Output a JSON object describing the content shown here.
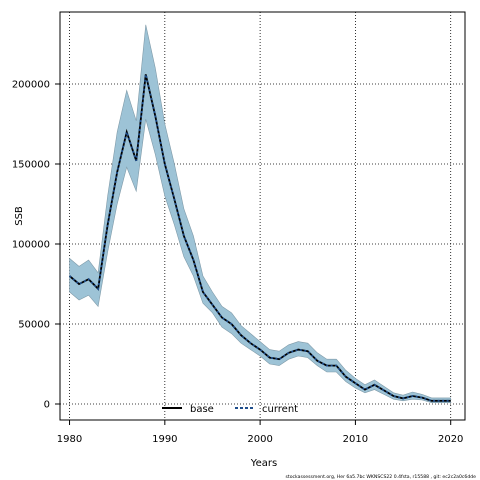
{
  "chart_data": {
    "type": "line",
    "xlabel": "Years",
    "ylabel": "SSB",
    "xlim": [
      1979,
      2021.5
    ],
    "ylim": [
      -10000,
      245000
    ],
    "xticks": [
      1980,
      1990,
      2000,
      2010,
      2020
    ],
    "yticks": [
      0,
      50000,
      100000,
      150000,
      200000
    ],
    "grid": true,
    "legend_position": "bottom-center",
    "band_color": "#9dc3d6",
    "band_edge_color": "#7f9aa8",
    "x": [
      1980,
      1981,
      1982,
      1983,
      1984,
      1985,
      1986,
      1987,
      1988,
      1989,
      1990,
      1991,
      1992,
      1993,
      1994,
      1995,
      1996,
      1997,
      1998,
      1999,
      2000,
      2001,
      2002,
      2003,
      2004,
      2005,
      2006,
      2007,
      2008,
      2009,
      2010,
      2011,
      2012,
      2013,
      2014,
      2015,
      2016,
      2017,
      2018,
      2019,
      2020
    ],
    "band_upper": [
      91000,
      86000,
      90000,
      82000,
      130000,
      170000,
      196000,
      177000,
      237000,
      210000,
      175000,
      150000,
      122000,
      105000,
      80000,
      70000,
      61000,
      57000,
      49000,
      44000,
      39000,
      34000,
      33000,
      37000,
      39000,
      38000,
      32000,
      28000,
      28000,
      21000,
      16000,
      12000,
      15000,
      11000,
      7000,
      5500,
      7500,
      6000,
      3800,
      3800,
      3800
    ],
    "band_lower": [
      70000,
      65000,
      68000,
      61000,
      95000,
      125000,
      148000,
      133000,
      178000,
      156000,
      130000,
      112000,
      92000,
      80000,
      63000,
      57000,
      48000,
      44000,
      38000,
      34000,
      30000,
      25000,
      24000,
      28000,
      30000,
      29000,
      24000,
      20000,
      20000,
      14000,
      10000,
      7000,
      9000,
      6000,
      3000,
      2000,
      3000,
      2500,
      800,
      800,
      800
    ],
    "series": [
      {
        "name": "base",
        "color": "#000000",
        "values": [
          80000,
          75000,
          78000,
          72000,
          112000,
          145000,
          170000,
          152000,
          206000,
          180000,
          150000,
          128000,
          105000,
          90000,
          70000,
          62000,
          54000,
          50000,
          43000,
          38000,
          34000,
          29000,
          28000,
          32000,
          34000,
          33000,
          27000,
          24000,
          24000,
          17000,
          13000,
          9000,
          12000,
          8500,
          5000,
          3500,
          5000,
          4000,
          2000,
          2000,
          2000
        ]
      },
      {
        "name": "current",
        "color": "#1f4e8c",
        "values": [
          80000,
          75000,
          78000,
          72000,
          112000,
          145000,
          170000,
          152000,
          206000,
          180000,
          150000,
          128000,
          105000,
          90000,
          70000,
          62000,
          54000,
          50000,
          43000,
          38000,
          34000,
          29000,
          28000,
          32000,
          34000,
          33000,
          27000,
          24000,
          24000,
          17000,
          13000,
          9000,
          12000,
          8500,
          5000,
          3500,
          5000,
          4000,
          2000,
          2000,
          2000
        ]
      }
    ]
  },
  "footer": "stockassessment.org,  Her  6a5.7bc  WKNSCS22  0.4fsta,  r15588 ,  git:  ec2c2a0c6dde"
}
